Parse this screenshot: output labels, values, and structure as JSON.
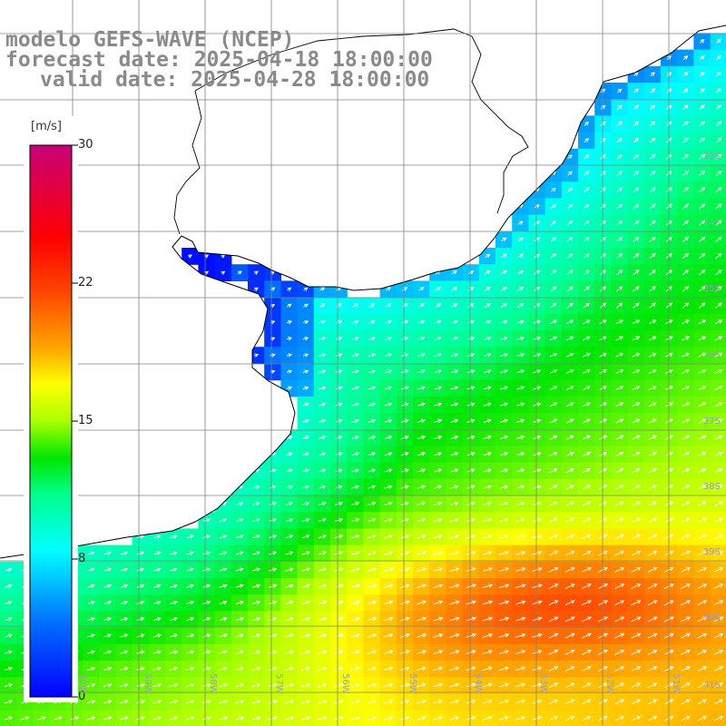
{
  "header": {
    "line1": "modelo GEFS-WAVE (NCEP)",
    "line2": "forecast date: 2025-04-18 18:00:00",
    "line3": "valid date: 2025-04-28 18:00:00"
  },
  "colorbar": {
    "unit": "[m/s]",
    "ticks": [
      {
        "value": 30,
        "label": "30"
      },
      {
        "value": 22,
        "label": "22"
      },
      {
        "value": 15,
        "label": "15"
      },
      {
        "value": 8,
        "label": "8"
      },
      {
        "value": 0,
        "label": "0"
      }
    ],
    "range": [
      0,
      30
    ]
  },
  "latitudes": [
    {
      "label": "33S"
    },
    {
      "label": "34S"
    },
    {
      "label": "35S"
    },
    {
      "label": "36S"
    },
    {
      "label": "37S"
    },
    {
      "label": "38S"
    },
    {
      "label": "39S"
    },
    {
      "label": "40S"
    },
    {
      "label": "41S"
    }
  ],
  "longitudes": [
    {
      "label": "60W"
    },
    {
      "label": "59W"
    },
    {
      "label": "58W"
    },
    {
      "label": "57W"
    },
    {
      "label": "56W"
    },
    {
      "label": "55W"
    },
    {
      "label": "54W"
    },
    {
      "label": "53W"
    },
    {
      "label": "52W"
    },
    {
      "label": "51W"
    }
  ],
  "colors": {
    "land": "#ffffff",
    "coast": "#000000",
    "grid": "#808080",
    "arrows": "#ffffff"
  }
}
